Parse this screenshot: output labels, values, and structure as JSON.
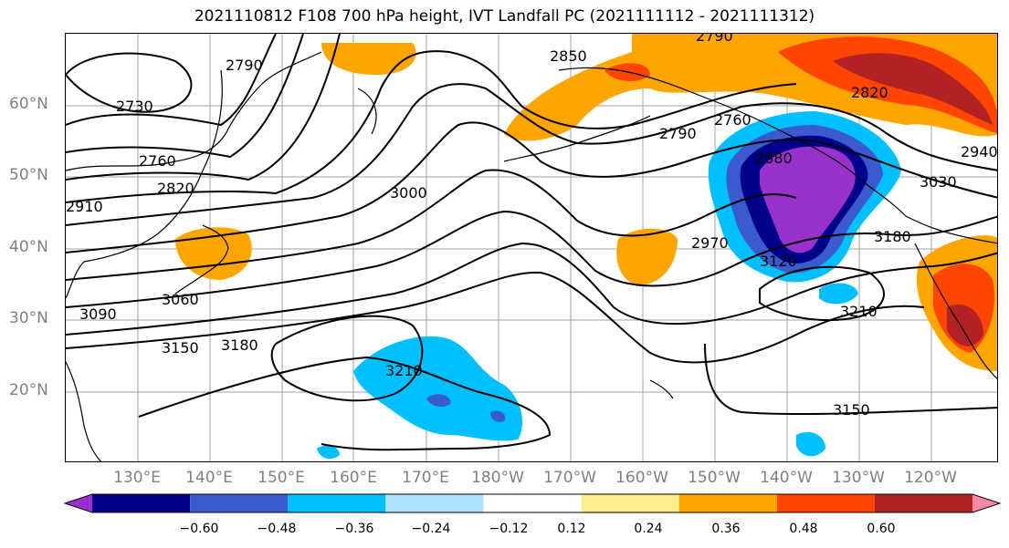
{
  "title": "2021110812 F108 700 hPa height, IVT Landfall PC (2021111112 - 2021111312)",
  "lat_labels": [
    "60°N",
    "50°N",
    "40°N",
    "30°N",
    "20°N"
  ],
  "lon_labels": [
    "130°E",
    "140°E",
    "150°E",
    "160°E",
    "170°E",
    "180°W",
    "170°W",
    "160°W",
    "150°W",
    "140°W",
    "130°W",
    "120°W"
  ],
  "contour_labels": [
    "2790",
    "2850",
    "2790",
    "2820",
    "2730",
    "2760",
    "2760",
    "2790",
    "2940",
    "2820",
    "2880",
    "3030",
    "2910",
    "3000",
    "2970",
    "3180",
    "3120",
    "3060",
    "3090",
    "3210",
    "3150",
    "3180",
    "3210",
    "3150"
  ],
  "colorbar": {
    "colors": [
      "#9932CC",
      "#00008B",
      "#3A5BCD",
      "#00BFFF",
      "#B0E2FF",
      "#FFFFFF",
      "#FFEC8B",
      "#FFA500",
      "#FF4500",
      "#B22222",
      "#FF88AA"
    ],
    "tick_labels": [
      "−0.60",
      "−0.48",
      "−0.36",
      "−0.24",
      "−0.12",
      "0.12",
      "0.24",
      "0.36",
      "0.48",
      "0.60"
    ]
  },
  "style": {
    "grid_color": "#A0A0A0",
    "contour_color": "#000000"
  }
}
